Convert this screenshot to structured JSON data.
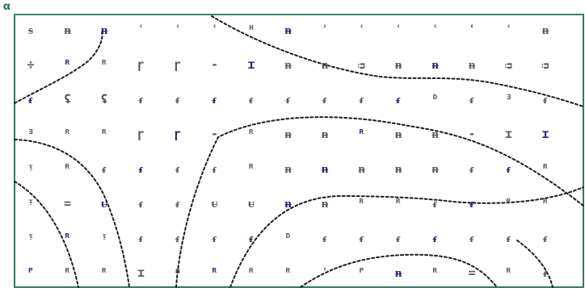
{
  "corner_label": "α",
  "frame_color": "#2f7a66",
  "contour_color": "#1d1d1d",
  "marker_color": "#5a5a5a",
  "marker_accent": "#2a2a6a",
  "marker_glyphs": [
    [
      "ᵴ",
      "ᵰ",
      "ᵰ",
      "ʿ",
      "ʿ",
      "ʿ",
      "ᴴ",
      "ᵰ",
      "ʾ",
      "ʿ",
      "ʿ",
      "ʿ",
      "ʿ",
      "ʿ",
      "ᵰ"
    ],
    [
      "÷",
      "ᴿ",
      "ᴿ",
      "ɼ",
      "ɼ",
      "-",
      "ɪ",
      "ᵰ",
      "ᵰ",
      "ᴞ",
      "ᵰ",
      "ᵰ",
      "ᵰ",
      "ᴞ",
      "ᴞ"
    ],
    [
      "ᵳ",
      "ʢ",
      "ʢ",
      "ᵳ",
      "ᵳ",
      "ᵳ",
      "ᵳ",
      "ᵳ",
      "ᵳ",
      "ᵳ",
      "ᵳ",
      "ᴰ",
      "ᵳ",
      "ᴲ",
      "ᵳ"
    ],
    [
      "ᴲ",
      "ᴿ",
      "ᴿ",
      "ɼ",
      "ɼ",
      "-",
      "ᴿ",
      "ᵰ",
      "ᵰ",
      "ᴿ",
      "ᵰ",
      "ᵰ",
      "-",
      "ɪ",
      "ɪ"
    ],
    [
      "ᵎ",
      "ᴿ",
      "ᵳ",
      "ᵳ",
      "ᵳ",
      "ᵳ",
      "ᴿ",
      "ᵰ",
      "ᵰ",
      "ᵰ",
      "ᵰ",
      "ᵰ",
      "ᵳ",
      "ᵳ",
      "ᴿ"
    ],
    [
      "ᵎ",
      "=",
      "ᵾ",
      "ᵳ",
      "ᵳ",
      "ᵾ",
      "ᵾ",
      "ᵰ",
      "ᵰ",
      "ᴿ",
      "ᴿ",
      "ᵳ",
      "ᵳ",
      "ᴿ",
      "ᴿ"
    ],
    [
      "ᵎ",
      "ᴿ",
      "ᵎ",
      "ᵳ",
      "ᵳ",
      "ᵳ",
      "ᵳ",
      "ᴰ",
      "ᵳ",
      "ᵳ",
      "ᵳ",
      "ᵳ",
      "ᵳ",
      "ᵳ",
      "ᵳ"
    ],
    [
      "ᴾ",
      "ᴿ",
      "ᴿ",
      "ɪ",
      "ᴽ",
      "ᴿ",
      "ᴿ",
      "ᴿ",
      "ʿ",
      "ᴾ",
      "ᵰ",
      "ᴿ",
      "=",
      "ᴿ",
      "ᵳ"
    ]
  ]
}
